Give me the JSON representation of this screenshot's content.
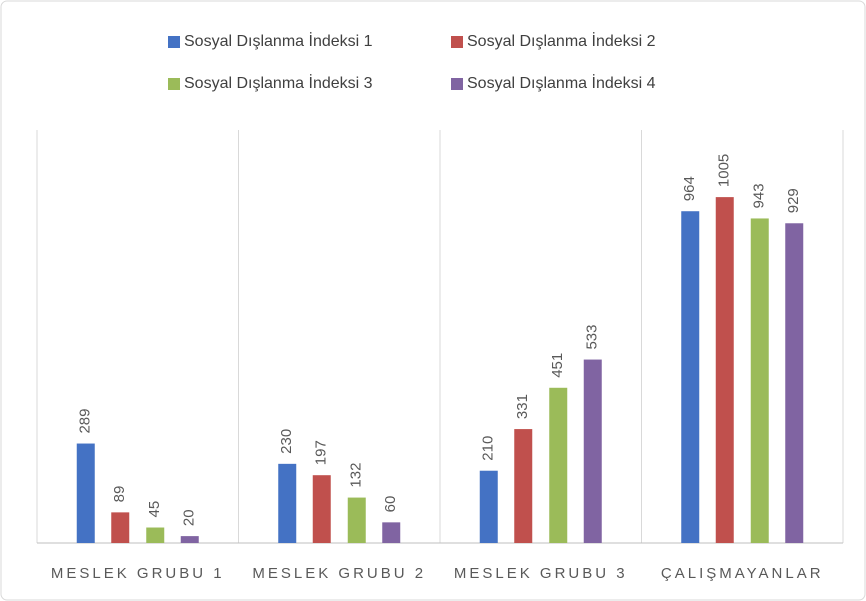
{
  "chart_data": {
    "type": "bar",
    "categories": [
      "MESLEK GRUBU 1",
      "MESLEK GRUBU 2",
      "MESLEK GRUBU 3",
      "ÇALIŞMAYANLAR"
    ],
    "series": [
      {
        "name": "Sosyal Dışlanma İndeksi 1",
        "color": "#4472c4",
        "values": [
          289,
          230,
          210,
          964
        ]
      },
      {
        "name": "Sosyal Dışlanma İndeksi 2",
        "color": "#c0504d",
        "values": [
          89,
          197,
          331,
          1005
        ]
      },
      {
        "name": "Sosyal Dışlanma İndeksi 3",
        "color": "#9bbb59",
        "values": [
          45,
          132,
          451,
          943
        ]
      },
      {
        "name": "Sosyal Dışlanma İndeksi 4",
        "color": "#8064a2",
        "values": [
          20,
          60,
          533,
          929
        ]
      }
    ],
    "ylim": [
      0,
      1200
    ]
  }
}
